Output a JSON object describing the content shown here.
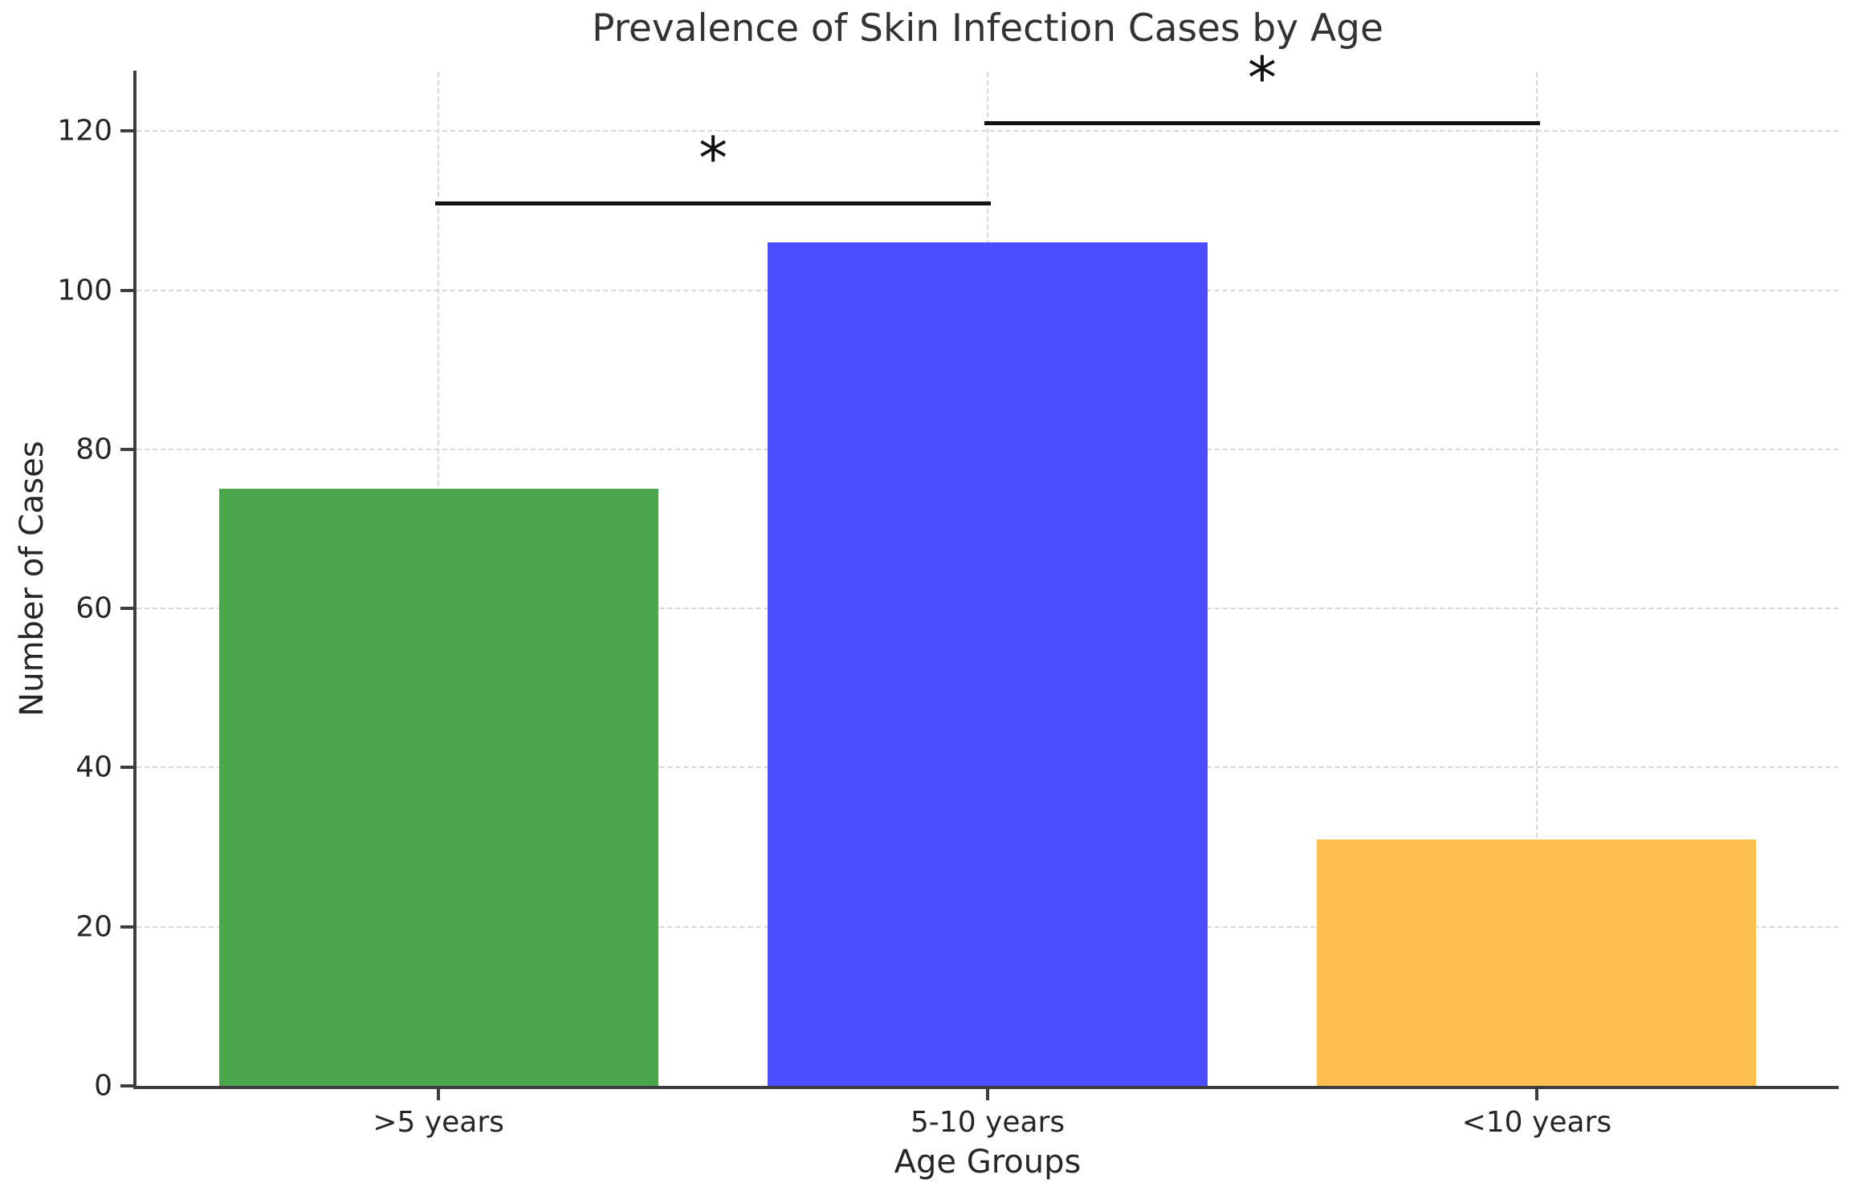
{
  "chart_data": {
    "type": "bar",
    "title": "Prevalence of Skin Infection Cases by Age",
    "xlabel": "Age Groups",
    "ylabel": "Number of Cases",
    "categories": [
      ">5 years",
      "5-10 years",
      "<10 years"
    ],
    "values": [
      75,
      106,
      31
    ],
    "bar_colors": [
      "#4ba64d",
      "#4c4dff",
      "#ffbe50"
    ],
    "bar_width_fraction": 0.8,
    "yticks": [
      0,
      20,
      40,
      60,
      80,
      100,
      120
    ],
    "ylim": [
      0,
      127.4
    ],
    "grid": "dashed gridlines on both axes",
    "legend": "none",
    "annotations": [
      {
        "type": "significance-bar",
        "from_category": ">5 years",
        "to_category": "5-10 years",
        "from_index": 0,
        "to_index": 1,
        "y": 111,
        "label": "*"
      },
      {
        "type": "significance-bar",
        "from_category": "5-10 years",
        "to_category": "<10 years",
        "from_index": 1,
        "to_index": 2,
        "y": 121,
        "label": "*"
      }
    ],
    "colors": {
      "background": "#ffffff",
      "spine": "#3d3d3d",
      "gridline": "#d7d7d7",
      "annotation": "#111111",
      "text": "#262626"
    }
  }
}
